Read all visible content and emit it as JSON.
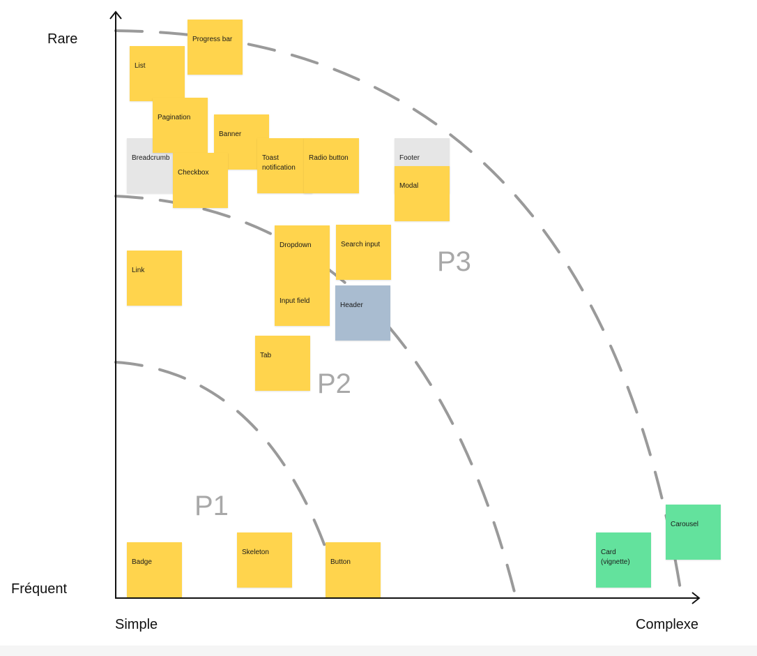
{
  "axes": {
    "y_top": "Rare",
    "y_bottom": "Fréquent",
    "x_left": "Simple",
    "x_right": "Complexe"
  },
  "zones": {
    "p1": "P1",
    "p2": "P2",
    "p3": "P3"
  },
  "colors": {
    "yellow": "#ffd44d",
    "gray": "#e6e6e6",
    "blue": "#a9bcd0",
    "green": "#63e29d",
    "dash": "#9a9a9a",
    "axis": "#111111"
  },
  "notes": {
    "progress_bar": "Progress bar",
    "list": "List",
    "pagination": "Pagination",
    "banner": "Banner",
    "breadcrumb": "Breadcrumb",
    "checkbox": "Checkbox",
    "toast": "Toast\nnotification",
    "radio": "Radio button",
    "footer": "Footer",
    "modal": "Modal",
    "link": "Link",
    "dropdown": "Dropdown",
    "input_field": "Input field",
    "search": "Search input",
    "header": "Header",
    "tab": "Tab",
    "badge": "Badge",
    "skeleton": "Skeleton",
    "button": "Button",
    "card": "Card\n(vignette)",
    "carousel": "Carousel"
  }
}
